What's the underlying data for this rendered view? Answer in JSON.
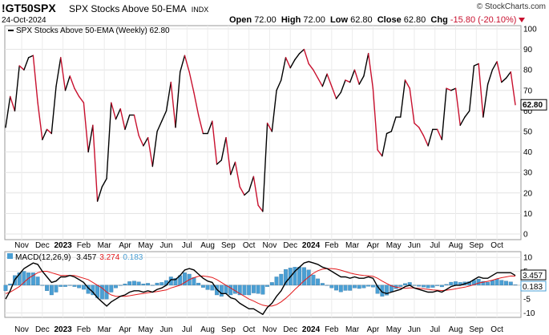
{
  "header": {
    "symbol": "!GT50SPX",
    "name": "SPX Stocks Above 50-EMA",
    "exchange": "INDX",
    "date": "24-Oct-2024",
    "logo": "© StockCharts.com",
    "open_label": "Open",
    "open": "72.00",
    "high_label": "High",
    "high": "72.00",
    "low_label": "Low",
    "low": "62.80",
    "close_label": "Close",
    "close": "62.80",
    "chg_label": "Chg",
    "chg": "-15.80 (-20.10%)",
    "down_icon": "down-triangle-icon"
  },
  "chart_data": [
    {
      "type": "line",
      "legend": "SPX Stocks Above 50-EMA (Weekly) 62.80",
      "last_value_label": "62.80",
      "ylim": [
        0,
        100
      ],
      "yticks": [
        0,
        10,
        20,
        30,
        40,
        50,
        60,
        70,
        80,
        90,
        100
      ],
      "x_axis_labels": [
        "Nov",
        "Dec",
        "2023",
        "Feb",
        "Mar",
        "Apr",
        "May",
        "Jun",
        "Jul",
        "Aug",
        "Sep",
        "Oct",
        "Nov",
        "Dec",
        "2024",
        "Feb",
        "Mar",
        "Apr",
        "May",
        "Jun",
        "Jul",
        "Aug",
        "Sep",
        "Oct"
      ],
      "up_color": "#000000",
      "down_color": "#c8102e",
      "values": [
        52,
        67,
        60,
        82,
        80,
        86,
        87,
        64,
        46,
        51,
        49,
        72,
        86,
        70,
        77,
        71,
        67,
        64,
        40,
        53,
        16,
        23,
        27,
        64,
        56,
        61,
        51,
        58,
        58,
        48,
        43,
        47,
        33,
        50,
        55,
        60,
        74,
        52,
        79,
        87,
        79,
        69,
        58,
        49,
        49,
        55,
        34,
        36,
        47,
        29,
        35,
        23,
        19,
        21,
        28,
        14,
        11,
        54,
        50,
        70,
        75,
        86,
        81,
        85,
        88,
        90,
        83,
        80,
        76,
        72,
        78,
        72,
        66,
        69,
        75,
        74,
        80,
        73,
        77,
        88,
        71,
        41,
        38,
        49,
        50,
        57,
        57,
        75,
        71,
        54,
        52,
        48,
        43,
        51,
        51,
        46,
        71,
        70,
        71,
        53,
        57,
        60,
        82,
        83,
        57,
        73,
        80,
        84,
        74,
        76,
        79,
        63
      ]
    },
    {
      "type": "line",
      "legend_label": "MACD(12,26,9)",
      "macd_value": "3.457",
      "signal_value": "3.274",
      "histogram_value": "0.183",
      "right_labels": [
        "3.457",
        "0.183"
      ],
      "ylim": [
        -11,
        11.5
      ],
      "yticks": [
        -10,
        -5,
        0,
        5,
        10
      ],
      "x_axis_labels": [
        "Nov",
        "Dec",
        "2023",
        "Feb",
        "Mar",
        "Apr",
        "May",
        "Jun",
        "Jul",
        "Aug",
        "Sep",
        "Oct",
        "Nov",
        "Dec",
        "2024",
        "Feb",
        "Mar",
        "Apr",
        "May",
        "Jun",
        "Jul",
        "Aug",
        "Sep",
        "Oct"
      ],
      "macd_color": "#000000",
      "signal_color": "#e31a1c",
      "histogram_color": "#4a9fd4",
      "macd": [
        -5,
        -2,
        2,
        4,
        6,
        7,
        8,
        7.5,
        5,
        3,
        1,
        1.5,
        3,
        3,
        3.5,
        3,
        2,
        1,
        -1,
        -2.5,
        -4.5,
        -6,
        -7.5,
        -6,
        -5,
        -4,
        -3.5,
        -2.5,
        -2,
        -2,
        -2.5,
        -2,
        -2.5,
        -1.5,
        -1,
        0,
        2,
        2,
        3.5,
        5.5,
        6,
        5.5,
        4,
        2.5,
        1.5,
        1,
        -1.5,
        -3,
        -3,
        -4.5,
        -5,
        -6.5,
        -7.5,
        -8.5,
        -8.5,
        -9.5,
        -10.5,
        -8,
        -6.5,
        -4,
        -2,
        1,
        3,
        5,
        6.5,
        8,
        8.5,
        8,
        7.5,
        6.5,
        6,
        5,
        4,
        3,
        3,
        2.5,
        3,
        2.5,
        2.5,
        3,
        2.5,
        -0.5,
        -2.5,
        -3,
        -2.5,
        -2,
        -1.5,
        -0.5,
        0,
        -1,
        -1.5,
        -2,
        -2.5,
        -2.5,
        -2,
        -2.5,
        -1.5,
        -0.5,
        0,
        0,
        0.5,
        1,
        2,
        3,
        2.5,
        2.5,
        3.5,
        4.5,
        4.5,
        4.5,
        4.5,
        3.5
      ],
      "signal": [
        -3,
        -2.5,
        -1.5,
        -0.5,
        1,
        2.5,
        3.5,
        4.5,
        5,
        5,
        4.5,
        4,
        3.5,
        3.5,
        3.5,
        3.5,
        3,
        2.5,
        2,
        1,
        0,
        -1,
        -2.5,
        -3.5,
        -4,
        -4,
        -4,
        -3.8,
        -3.5,
        -3.2,
        -3,
        -2.7,
        -2.5,
        -2.3,
        -2,
        -1.7,
        -1,
        -0.5,
        0,
        1,
        2,
        2.7,
        3.2,
        3.3,
        3.1,
        2.8,
        2,
        1,
        0,
        -1,
        -2,
        -3,
        -4,
        -5,
        -5.7,
        -6.5,
        -7.2,
        -7.5,
        -7.5,
        -7,
        -6,
        -4.7,
        -3.2,
        -1.5,
        0,
        1.6,
        3,
        4.3,
        5.2,
        5.8,
        6,
        6,
        5.8,
        5.4,
        4.9,
        4.4,
        4,
        3.7,
        3.5,
        3.4,
        3.2,
        2.5,
        1.5,
        0.6,
        -0.2,
        -0.7,
        -1,
        -1.1,
        -1,
        -1,
        -1.1,
        -1.3,
        -1.5,
        -1.7,
        -1.8,
        -1.9,
        -1.8,
        -1.6,
        -1.3,
        -1,
        -0.7,
        -0.3,
        0.2,
        0.8,
        1.1,
        1.4,
        1.8,
        2.3,
        2.7,
        3,
        3.3,
        3.274
      ],
      "histogram": [
        -2,
        0.5,
        3.5,
        4.5,
        5,
        4.5,
        4.5,
        3,
        0,
        -2,
        -3.5,
        -2.5,
        -0.5,
        -0.5,
        0,
        -0.5,
        -1,
        -1.5,
        -3,
        -3.5,
        -4.5,
        -5,
        -5,
        -2.5,
        -1,
        0,
        0.5,
        1.3,
        1.5,
        1.2,
        0.5,
        0.7,
        0,
        0.8,
        1,
        1.7,
        3,
        2.5,
        3.5,
        4.5,
        4,
        2.8,
        0.8,
        -0.8,
        -1.6,
        -1.8,
        -3.5,
        -4,
        -3,
        -3.5,
        -3,
        -3.5,
        -3.5,
        -3.5,
        -2.8,
        -3,
        -3.3,
        -0.5,
        1,
        3,
        4,
        5.7,
        6.2,
        6.5,
        6.5,
        6.4,
        5.5,
        3.7,
        2.3,
        0.7,
        0,
        -1,
        -1.8,
        -2.4,
        -1.9,
        -1.9,
        -1,
        -1.2,
        -1,
        -0.4,
        -0.7,
        -3,
        -4,
        -3.6,
        -2.3,
        -1.3,
        -0.5,
        0.6,
        1,
        0,
        -0.4,
        -0.7,
        -1,
        -0.8,
        -0.2,
        -0.6,
        0.3,
        1.1,
        1.3,
        1,
        1.2,
        1.3,
        1.8,
        2.2,
        1.4,
        1.1,
        1.7,
        2.2,
        1.8,
        1.5,
        1.2,
        0.183
      ]
    }
  ]
}
